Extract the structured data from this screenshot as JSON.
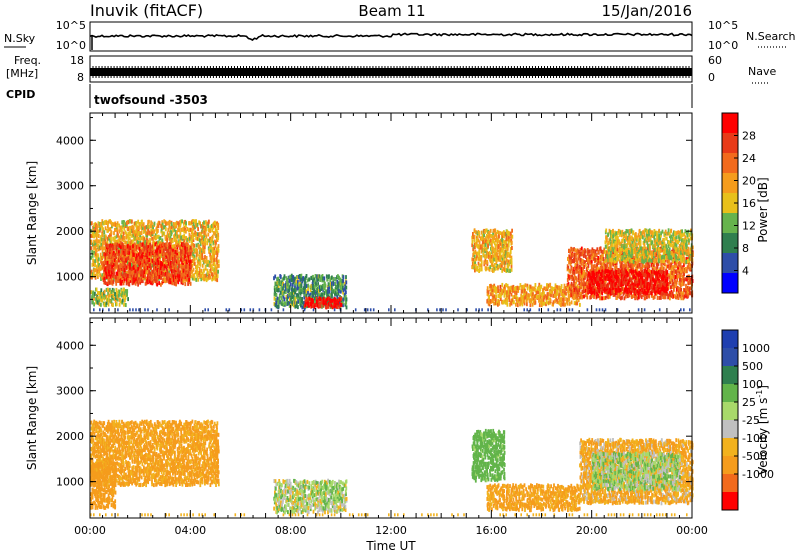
{
  "header": {
    "station": "Inuvik (fitACF)",
    "beam": "Beam 11",
    "date": "15/Jan/2016"
  },
  "aux_panels": {
    "nsky_label": "N.Sky",
    "nsearch_label": "N.Search",
    "nsky_ticks": [
      "10^5",
      "10^0"
    ],
    "nsearch_ticks": [
      "10^5",
      "10^0"
    ],
    "freq_label_top": "Freq.",
    "freq_label_bottom": "[MHz]",
    "freq_ticks": [
      "18",
      "8"
    ],
    "nave_label": "Nave",
    "nave_ticks": [
      "60",
      "0"
    ],
    "cpid_label": "CPID",
    "cpid_value": "twofsound -3503"
  },
  "colors": {
    "power_scale": [
      "#0000ff",
      "#2e4ea8",
      "#2f7f4f",
      "#66b34d",
      "#e8c01a",
      "#f59c1c",
      "#f26a1c",
      "#e83a18",
      "#ff0000"
    ],
    "velocity_scale": [
      "#ff0000",
      "#f26a1c",
      "#f59c1c",
      "#f2b21e",
      "#c0c0c0",
      "#a8d96a",
      "#62b44a",
      "#2f7f4f",
      "#2e4ea8",
      "#1f3fb0"
    ],
    "velocity_bins": [
      "1000",
      "500",
      "100",
      "25",
      "-25",
      "-100",
      "-500",
      "-1000"
    ]
  },
  "chart_data": [
    {
      "type": "heatmap",
      "panel": "power",
      "ylabel": "Slant Range [km]",
      "yticks": [
        "4000",
        "3000",
        "2000",
        "1000"
      ],
      "ylim": [
        200,
        4600
      ],
      "colorbar_label": "Power [dB]",
      "colorbar_ticks": [
        "28",
        "24",
        "20",
        "16",
        "12",
        "8",
        "4"
      ],
      "clim": [
        0,
        32
      ],
      "regions": [
        {
          "t": [
            0.0,
            5.1
          ],
          "range": [
            900,
            2200
          ],
          "value": 18
        },
        {
          "t": [
            0.5,
            4.0
          ],
          "range": [
            800,
            1700
          ],
          "value": 26
        },
        {
          "t": [
            0.0,
            1.5
          ],
          "range": [
            350,
            700
          ],
          "value": 14
        },
        {
          "t": [
            7.3,
            10.2
          ],
          "range": [
            300,
            1000
          ],
          "value": 10
        },
        {
          "t": [
            8.5,
            10.0
          ],
          "range": [
            300,
            500
          ],
          "value": 30
        },
        {
          "t": [
            15.2,
            16.8
          ],
          "range": [
            1100,
            2000
          ],
          "value": 18
        },
        {
          "t": [
            15.8,
            19.5
          ],
          "range": [
            350,
            800
          ],
          "value": 20
        },
        {
          "t": [
            19.0,
            24.0
          ],
          "range": [
            500,
            1600
          ],
          "value": 24
        },
        {
          "t": [
            19.8,
            23.0
          ],
          "range": [
            600,
            1100
          ],
          "value": 30
        },
        {
          "t": [
            20.5,
            24.0
          ],
          "range": [
            1300,
            2000
          ],
          "value": 16
        }
      ]
    },
    {
      "type": "heatmap",
      "panel": "velocity",
      "ylabel": "Slant Range [km]",
      "yticks": [
        "4000",
        "3000",
        "2000",
        "1000"
      ],
      "ylim": [
        200,
        4600
      ],
      "xlabel": "Time UT",
      "xticks": [
        "00:00",
        "04:00",
        "08:00",
        "12:00",
        "16:00",
        "20:00",
        "00:00"
      ],
      "xlim": [
        0,
        24
      ],
      "colorbar_label": "Velocity [m s",
      "colorbar_label_exponent": "-1",
      "colorbar_label_close": "]",
      "regions": [
        {
          "t": [
            0.0,
            5.1
          ],
          "range": [
            900,
            2300
          ],
          "value": -150
        },
        {
          "t": [
            0.0,
            1.0
          ],
          "range": [
            400,
            1400
          ],
          "value": -200
        },
        {
          "t": [
            7.3,
            10.2
          ],
          "range": [
            300,
            1000
          ],
          "value": 50
        },
        {
          "t": [
            15.2,
            16.5
          ],
          "range": [
            1000,
            2100
          ],
          "value": 200
        },
        {
          "t": [
            15.8,
            19.5
          ],
          "range": [
            350,
            900
          ],
          "value": -150
        },
        {
          "t": [
            19.5,
            24.0
          ],
          "range": [
            500,
            1900
          ],
          "value": -100
        },
        {
          "t": [
            20.0,
            23.5
          ],
          "range": [
            800,
            1600
          ],
          "value": 60
        }
      ]
    }
  ]
}
